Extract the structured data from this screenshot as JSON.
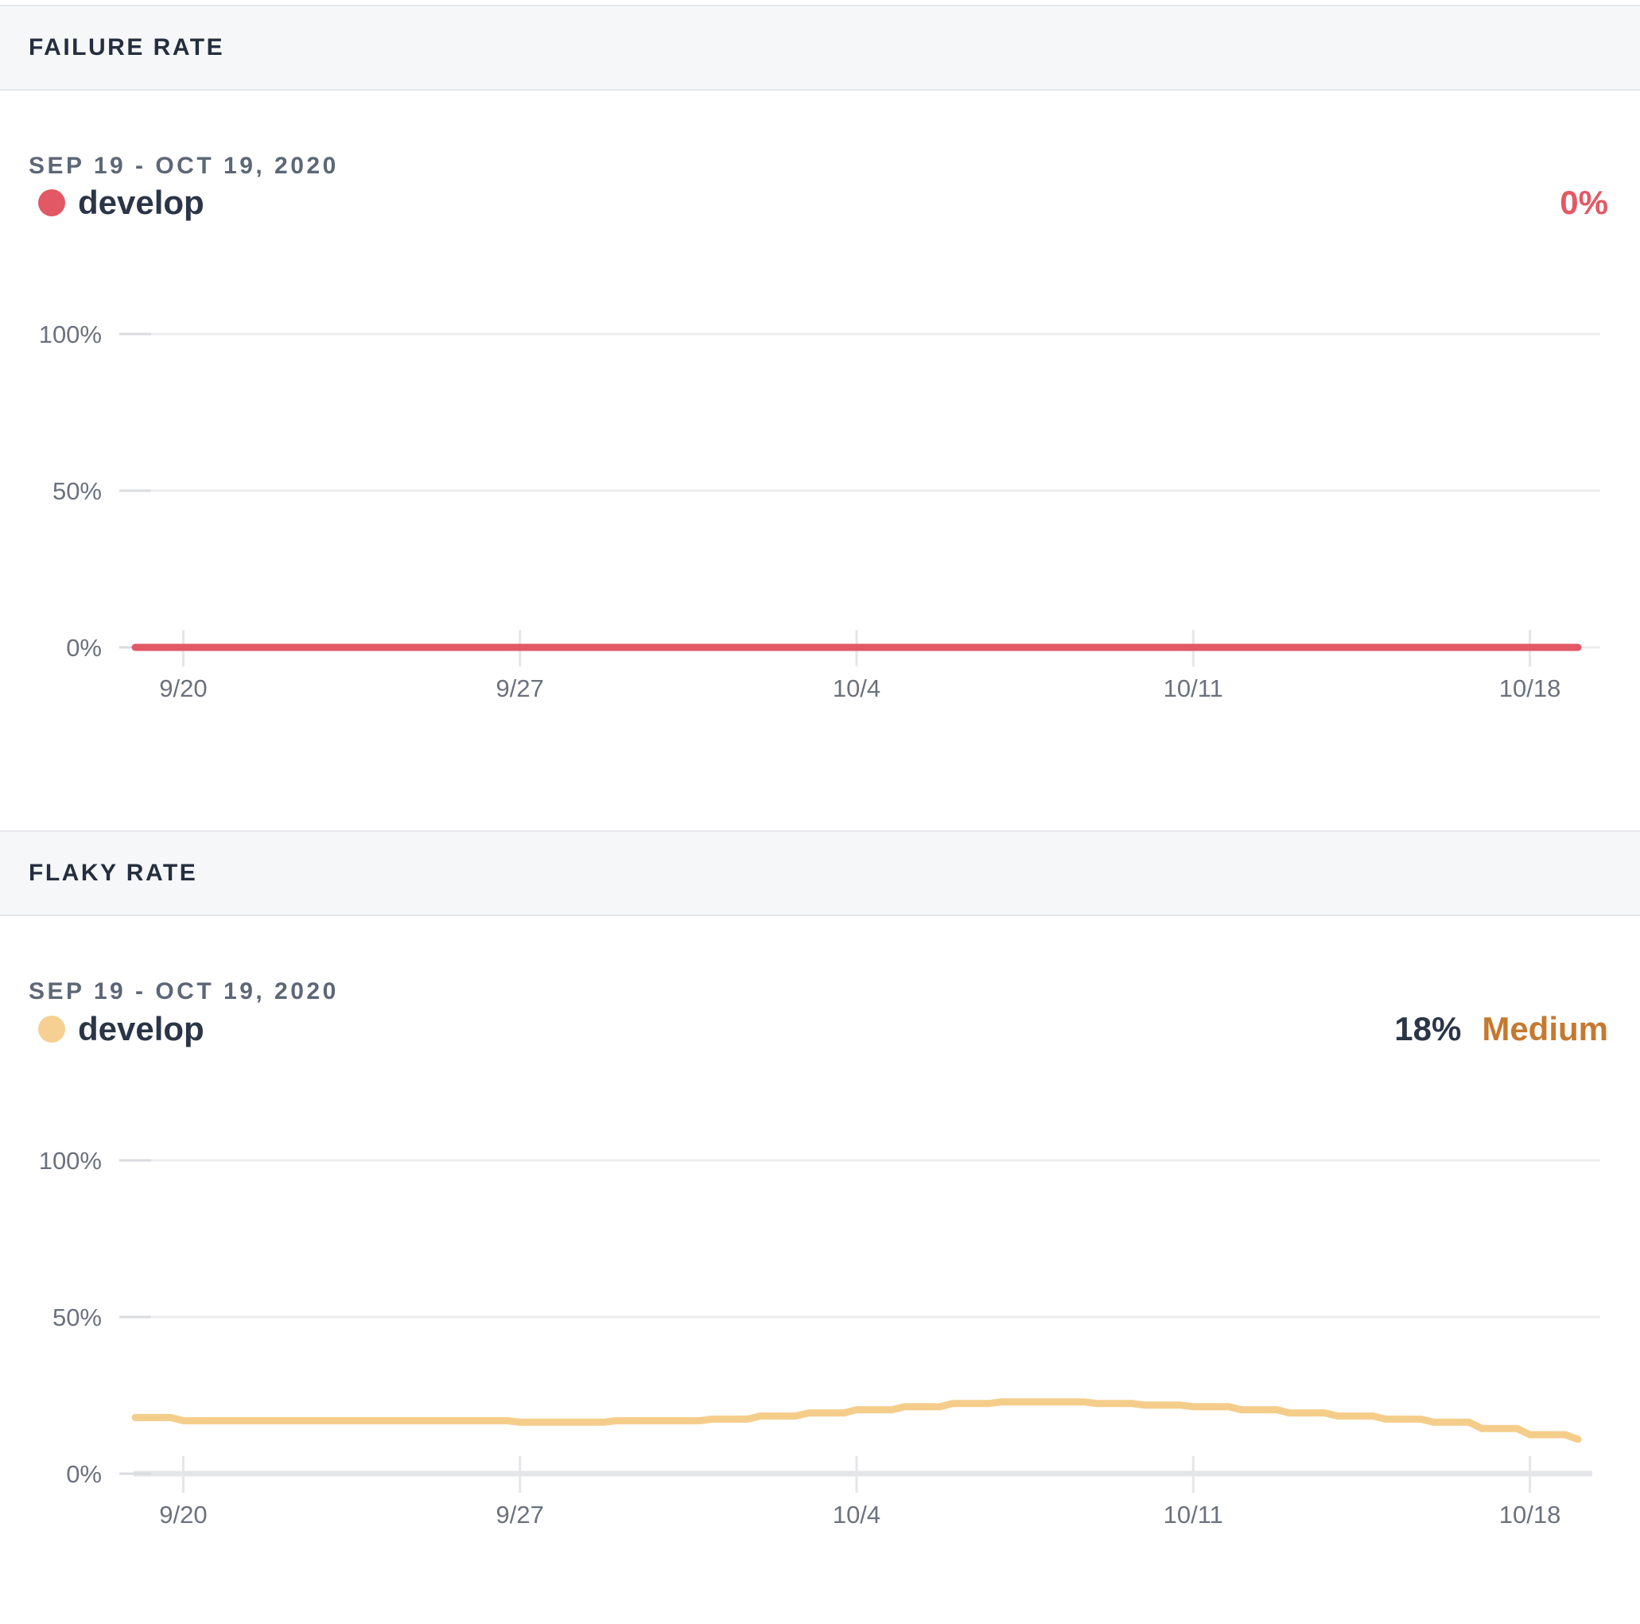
{
  "colors": {
    "failure": "#e25864",
    "flaky_line": "#f5cd8b",
    "flaky_dot": "#f6d092",
    "severity_medium": "#c5792f",
    "navy": "#2a3547"
  },
  "panels": [
    {
      "title": "FAILURE RATE",
      "date_range": "SEP 19 - OCT 19, 2020",
      "legend": {
        "series": "develop"
      },
      "value": "0%"
    },
    {
      "title": "FLAKY RATE",
      "date_range": "SEP 19 - OCT 19, 2020",
      "legend": {
        "series": "develop"
      },
      "value": "18%",
      "severity": "Medium"
    }
  ],
  "chart_data": [
    {
      "type": "line",
      "title": "Failure rate",
      "x_range": [
        "9/19",
        "10/19"
      ],
      "x": [
        "9/19",
        "9/20",
        "9/21",
        "9/22",
        "9/23",
        "9/24",
        "9/25",
        "9/26",
        "9/27",
        "9/28",
        "9/29",
        "9/30",
        "10/1",
        "10/2",
        "10/3",
        "10/4",
        "10/5",
        "10/6",
        "10/7",
        "10/8",
        "10/9",
        "10/10",
        "10/11",
        "10/12",
        "10/13",
        "10/14",
        "10/15",
        "10/16",
        "10/17",
        "10/18",
        "10/19"
      ],
      "x_tick_labels": [
        "9/20",
        "9/27",
        "10/4",
        "10/11",
        "10/18"
      ],
      "x_tick_indices": [
        1,
        8,
        15,
        22,
        29
      ],
      "y_ticks": [
        "0%",
        "50%",
        "100%"
      ],
      "ylim": [
        0,
        100
      ],
      "grid": true,
      "legend_position": "top-left",
      "current_value": "0%",
      "series": [
        {
          "name": "develop",
          "color": "#e25864",
          "unit": "%",
          "values": [
            0,
            0,
            0,
            0,
            0,
            0,
            0,
            0,
            0,
            0,
            0,
            0,
            0,
            0,
            0,
            0,
            0,
            0,
            0,
            0,
            0,
            0,
            0,
            0,
            0,
            0,
            0,
            0,
            0,
            0,
            0
          ]
        }
      ]
    },
    {
      "type": "line",
      "title": "Flaky rate",
      "x_range": [
        "9/19",
        "10/19"
      ],
      "x": [
        "9/19",
        "9/20",
        "9/21",
        "9/22",
        "9/23",
        "9/24",
        "9/25",
        "9/26",
        "9/27",
        "9/28",
        "9/29",
        "9/30",
        "10/1",
        "10/2",
        "10/3",
        "10/4",
        "10/5",
        "10/6",
        "10/7",
        "10/8",
        "10/9",
        "10/10",
        "10/11",
        "10/12",
        "10/13",
        "10/14",
        "10/15",
        "10/16",
        "10/17",
        "10/18",
        "10/19"
      ],
      "x_tick_labels": [
        "9/20",
        "9/27",
        "10/4",
        "10/11",
        "10/18"
      ],
      "x_tick_indices": [
        1,
        8,
        15,
        22,
        29
      ],
      "y_ticks": [
        "0%",
        "50%",
        "100%"
      ],
      "ylim": [
        0,
        100
      ],
      "grid": true,
      "legend_position": "top-left",
      "current_value": "18%",
      "severity_label": "Medium",
      "series": [
        {
          "name": "develop",
          "color": "#f5cd8b",
          "unit": "%",
          "values": [
            18,
            17,
            17,
            17,
            17,
            17,
            17,
            17,
            16.5,
            16.5,
            17,
            17,
            17.5,
            18.5,
            19.5,
            20.5,
            21.5,
            22.5,
            23,
            23,
            22.5,
            22,
            21.5,
            20.5,
            19.5,
            18.5,
            17.5,
            16.5,
            14.5,
            12.5,
            11
          ]
        }
      ]
    }
  ]
}
